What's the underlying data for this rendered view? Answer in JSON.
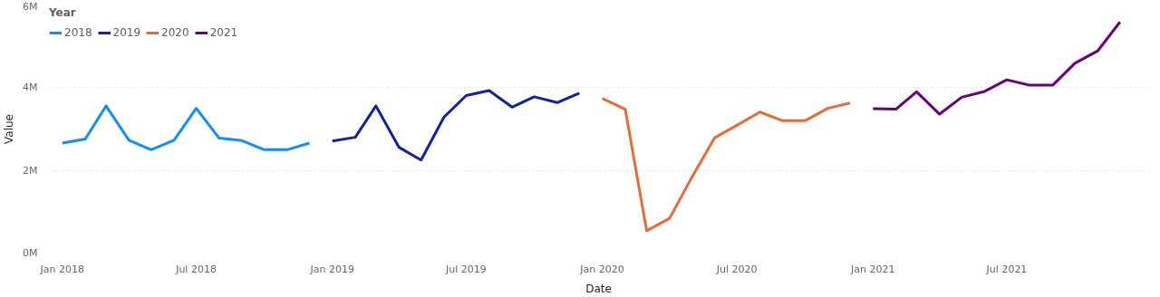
{
  "chart_data": {
    "type": "line",
    "xlabel": "Date",
    "ylabel": "Value",
    "legend_title": "Year",
    "legend": "top left",
    "grid": "y",
    "line_style": "solid",
    "xlim": [
      "2017-12-12",
      "2022-01-10"
    ],
    "ylim": [
      0,
      6000000
    ],
    "xticks": [
      {
        "value": "2018-01",
        "label": "Jan 2018"
      },
      {
        "value": "2018-07",
        "label": "Jul 2018"
      },
      {
        "value": "2019-01",
        "label": "Jan 2019"
      },
      {
        "value": "2019-07",
        "label": "Jul 2019"
      },
      {
        "value": "2020-01",
        "label": "Jan 2020"
      },
      {
        "value": "2020-07",
        "label": "Jul 2020"
      },
      {
        "value": "2021-01",
        "label": "Jan 2021"
      },
      {
        "value": "2021-07",
        "label": "Jul 2021"
      }
    ],
    "yticks": [
      {
        "value": 0,
        "label": "0M"
      },
      {
        "value": 2000000,
        "label": "2M"
      },
      {
        "value": 4000000,
        "label": "4M"
      },
      {
        "value": 6000000,
        "label": "6M"
      }
    ],
    "series": [
      {
        "name": "2018",
        "color": "#118dff",
        "x": [
          "2018-01",
          "2018-02",
          "2018-03",
          "2018-04",
          "2018-05",
          "2018-06",
          "2018-07",
          "2018-08",
          "2018-09",
          "2018-10",
          "2018-11",
          "2018-12"
        ],
        "values": [
          2660000,
          2760000,
          3560000,
          2730000,
          2500000,
          2730000,
          3500000,
          2780000,
          2720000,
          2500000,
          2500000,
          2660000
        ]
      },
      {
        "name": "2019",
        "color": "#12239e",
        "x": [
          "2019-01",
          "2019-02",
          "2019-03",
          "2019-04",
          "2019-05",
          "2019-06",
          "2019-07",
          "2019-08",
          "2019-09",
          "2019-10",
          "2019-11",
          "2019-12"
        ],
        "values": [
          2710000,
          2800000,
          3560000,
          2560000,
          2250000,
          3290000,
          3810000,
          3930000,
          3530000,
          3780000,
          3640000,
          3870000
        ]
      },
      {
        "name": "2020",
        "color": "#e66c37",
        "x": [
          "2020-01",
          "2020-02",
          "2020-03",
          "2020-04",
          "2020-05",
          "2020-06",
          "2020-07",
          "2020-08",
          "2020-09",
          "2020-10",
          "2020-11",
          "2020-12"
        ],
        "values": [
          3740000,
          3480000,
          540000,
          840000,
          1830000,
          2790000,
          3090000,
          3410000,
          3200000,
          3200000,
          3500000,
          3630000
        ]
      },
      {
        "name": "2021",
        "color": "#6b007b",
        "x": [
          "2021-01",
          "2021-02",
          "2021-03",
          "2021-04",
          "2021-05",
          "2021-06",
          "2021-07",
          "2021-08",
          "2021-09",
          "2021-10",
          "2021-11",
          "2021-12"
        ],
        "values": [
          3490000,
          3480000,
          3900000,
          3360000,
          3770000,
          3910000,
          4190000,
          4060000,
          4060000,
          4590000,
          4890000,
          5590000
        ]
      }
    ]
  }
}
